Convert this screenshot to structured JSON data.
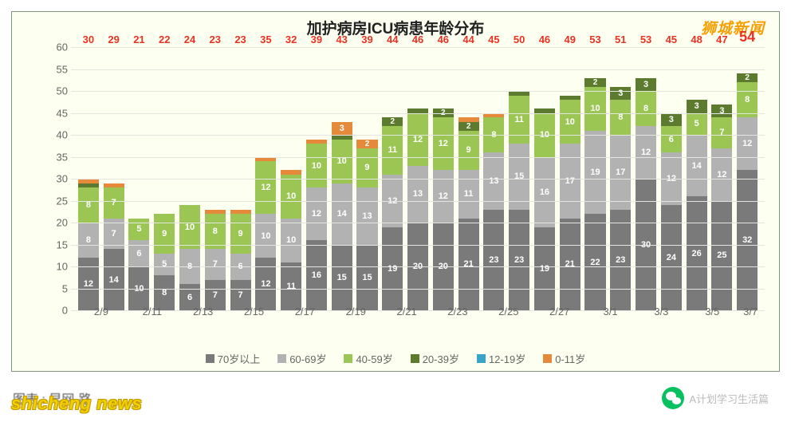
{
  "chart": {
    "type": "stacked-bar",
    "title": "加护病房ICU病患年龄分布",
    "watermark_top": "狮城新闻",
    "background_color": "#fdfff0",
    "border_color": "#7e977a",
    "title_fontsize": 19,
    "label_fontsize": 13,
    "tick_fontsize": 13,
    "grid_color": "#e6e6e0",
    "text_color": "#666666",
    "bar_width": 0.82,
    "ylim": [
      0,
      60
    ],
    "ytick_step": 5,
    "yticks": [
      0,
      5,
      10,
      15,
      20,
      25,
      30,
      35,
      40,
      45,
      50,
      55,
      60
    ],
    "segment_label_color": "#ffffff",
    "segment_label_fontsize": 11,
    "total_label_color": "#e73223",
    "total_label_color_highlight": "#e73223",
    "total_label_fontsize": 13,
    "total_label_fontsize_highlight": 18,
    "categories": [
      "2/9",
      "2/10",
      "2/11",
      "2/12",
      "2/13",
      "2/14",
      "2/15",
      "2/16",
      "2/17",
      "2/18",
      "2/19",
      "2/20",
      "2/21",
      "2/22",
      "2/23",
      "2/24",
      "2/25",
      "2/26",
      "2/27",
      "2/28",
      "3/1",
      "3/2",
      "3/3",
      "3/4",
      "3/5",
      "3/6",
      "3/7"
    ],
    "xlabels_shown": [
      "2/9",
      "2/11",
      "2/13",
      "2/15",
      "2/17",
      "2/19",
      "2/21",
      "2/23",
      "2/25",
      "2/27",
      "3/1",
      "3/3",
      "3/5",
      "3/7"
    ],
    "xlabel_last_single": true,
    "series": [
      {
        "name": "70岁以上",
        "color": "#7a7a7a"
      },
      {
        "name": "60-69岁",
        "color": "#b2b2b2"
      },
      {
        "name": "40-59岁",
        "color": "#9bc654"
      },
      {
        "name": "20-39岁",
        "color": "#5d7b2e"
      },
      {
        "name": "12-19岁",
        "color": "#3aa3c9"
      },
      {
        "name": "0-11岁",
        "color": "#e58a3a"
      }
    ],
    "data": [
      {
        "total": 30,
        "values": [
          12,
          8,
          8,
          1,
          0,
          1
        ],
        "highlight": false
      },
      {
        "total": 29,
        "values": [
          14,
          7,
          7,
          0,
          0,
          1
        ],
        "highlight": false
      },
      {
        "total": 21,
        "values": [
          10,
          6,
          5,
          0,
          0,
          0
        ],
        "highlight": false
      },
      {
        "total": 22,
        "values": [
          8,
          5,
          9,
          0,
          0,
          0
        ],
        "highlight": false
      },
      {
        "total": 24,
        "values": [
          6,
          8,
          10,
          0,
          0,
          0
        ],
        "highlight": false
      },
      {
        "total": 23,
        "values": [
          7,
          7,
          8,
          0,
          0,
          1
        ],
        "highlight": false
      },
      {
        "total": 23,
        "values": [
          7,
          6,
          9,
          0,
          0,
          1
        ],
        "highlight": false
      },
      {
        "total": 35,
        "values": [
          12,
          10,
          12,
          0,
          0,
          1
        ],
        "highlight": false
      },
      {
        "total": 32,
        "values": [
          11,
          10,
          10,
          0,
          0,
          1
        ],
        "highlight": false
      },
      {
        "total": 39,
        "values": [
          16,
          12,
          10,
          0,
          0,
          1
        ],
        "highlight": false
      },
      {
        "total": 43,
        "values": [
          15,
          14,
          10,
          1,
          0,
          3
        ],
        "highlight": false
      },
      {
        "total": 39,
        "values": [
          15,
          13,
          9,
          0,
          0,
          2
        ],
        "highlight": false
      },
      {
        "total": 44,
        "values": [
          19,
          12,
          11,
          2,
          0,
          0
        ],
        "highlight": false
      },
      {
        "total": 46,
        "values": [
          20,
          13,
          12,
          1,
          0,
          0
        ],
        "highlight": false
      },
      {
        "total": 46,
        "values": [
          20,
          12,
          12,
          2,
          0,
          0
        ],
        "highlight": false
      },
      {
        "total": 44,
        "values": [
          21,
          11,
          9,
          2,
          0,
          1
        ],
        "highlight": false
      },
      {
        "total": 45,
        "values": [
          23,
          13,
          8,
          0,
          0,
          1
        ],
        "highlight": false
      },
      {
        "total": 50,
        "values": [
          23,
          15,
          11,
          1,
          0,
          0
        ],
        "highlight": false
      },
      {
        "total": 46,
        "values": [
          19,
          16,
          10,
          1,
          0,
          0
        ],
        "highlight": false
      },
      {
        "total": 49,
        "values": [
          21,
          17,
          10,
          1,
          0,
          0
        ],
        "highlight": false
      },
      {
        "total": 53,
        "values": [
          22,
          19,
          10,
          2,
          0,
          0
        ],
        "highlight": false
      },
      {
        "total": 51,
        "values": [
          23,
          17,
          8,
          3,
          0,
          0
        ],
        "highlight": false
      },
      {
        "total": 53,
        "values": [
          30,
          12,
          8,
          3,
          0,
          0
        ],
        "highlight": false
      },
      {
        "total": 45,
        "values": [
          24,
          12,
          6,
          3,
          0,
          0
        ],
        "highlight": false
      },
      {
        "total": 48,
        "values": [
          26,
          14,
          5,
          3,
          0,
          0
        ],
        "highlight": false
      },
      {
        "total": 47,
        "values": [
          25,
          12,
          7,
          3,
          0,
          0
        ],
        "highlight": false
      },
      {
        "total": 54,
        "values": [
          32,
          12,
          8,
          2,
          0,
          0
        ],
        "highlight": true
      }
    ],
    "legend": [
      {
        "label": "70岁以上",
        "color": "#7a7a7a"
      },
      {
        "label": "60-69岁",
        "color": "#b2b2b2"
      },
      {
        "label": "40-59岁",
        "color": "#9bc654"
      },
      {
        "label": "20-39岁",
        "color": "#5d7b2e"
      },
      {
        "label": "12-19岁",
        "color": "#3aa3c9"
      },
      {
        "label": "0-11岁",
        "color": "#e58a3a"
      }
    ],
    "footer": {
      "credit_left": "图表 :  早网·路",
      "watermark_left": "shicheng news",
      "wechat_name": "A计划学习生活篇"
    }
  }
}
